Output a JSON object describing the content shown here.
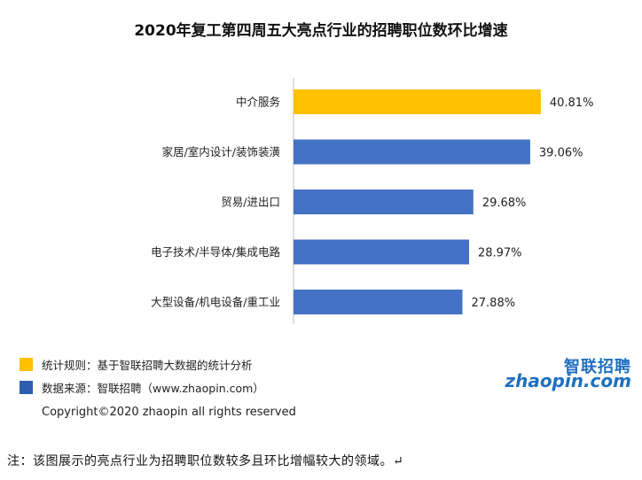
{
  "chart_data": {
    "type": "bar",
    "orientation": "horizontal",
    "title": "2020年复工第四周五大亮点行业的招聘职位数环比增速",
    "categories": [
      "中介服务",
      "家居/室内设计/装饰装潢",
      "贸易/进出口",
      "电子技术/半导体/集成电路",
      "大型设备/机电设备/重工业"
    ],
    "values": [
      40.81,
      39.06,
      29.68,
      28.97,
      27.88
    ],
    "value_labels": [
      "40.81%",
      "39.06%",
      "29.68%",
      "28.97%",
      "27.88%"
    ],
    "unit": "%",
    "highlight_index": 0,
    "colors": {
      "highlight": "#FFC000",
      "default": "#4472C4"
    },
    "xlim": [
      0,
      42
    ]
  },
  "notes": [
    {
      "text": "统计规则：基于智联招聘大数据的统计分析",
      "color": "#FFC000"
    },
    {
      "text": "数据来源：智联招聘（www.zhaopin.com）",
      "color": "#2E5DB0"
    }
  ],
  "logo": {
    "cn": "智联招聘",
    "en": "zhaopin.com"
  },
  "copyright": "Copyright©2020 zhaopin all rights reserved",
  "footnote": "注：该图展示的亮点行业为招聘职位数较多且环比增幅较大的领域。↵"
}
